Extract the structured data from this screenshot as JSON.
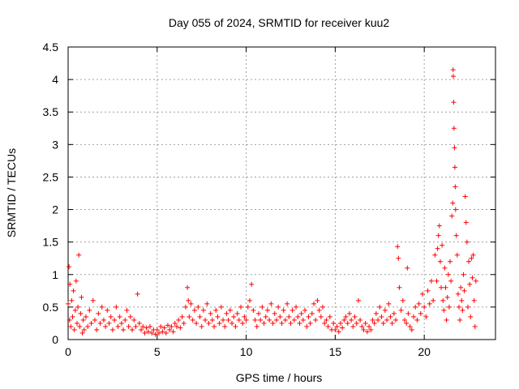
{
  "chart_data": {
    "type": "scatter",
    "title": "Day 055 of 2024, SRMTID for receiver kuu2",
    "xlabel": "GPS time / hours",
    "ylabel": "SRMTID / TECUs",
    "xlim": [
      0,
      24
    ],
    "ylim": [
      0,
      4.5
    ],
    "xticks": [
      {
        "value": 0,
        "label": "0"
      },
      {
        "value": 5,
        "label": "5"
      },
      {
        "value": 10,
        "label": "10"
      },
      {
        "value": 15,
        "label": "15"
      },
      {
        "value": 20,
        "label": "20"
      }
    ],
    "yticks": [
      {
        "value": 0,
        "label": "0"
      },
      {
        "value": 0.5,
        "label": "0.5"
      },
      {
        "value": 1,
        "label": "1"
      },
      {
        "value": 1.5,
        "label": "1.5"
      },
      {
        "value": 2,
        "label": "2"
      },
      {
        "value": 2.5,
        "label": "2.5"
      },
      {
        "value": 3,
        "label": "3"
      },
      {
        "value": 3.5,
        "label": "3.5"
      },
      {
        "value": 4,
        "label": "4"
      },
      {
        "value": 4.5,
        "label": "4.5"
      }
    ],
    "grid": true,
    "marker": "plus",
    "color": "#ff0000",
    "series": [
      {
        "name": "kuu2",
        "points": [
          [
            0.0,
            0.55
          ],
          [
            0.05,
            1.12
          ],
          [
            0.08,
            0.3
          ],
          [
            0.1,
            0.85
          ],
          [
            0.15,
            0.2
          ],
          [
            0.2,
            0.6
          ],
          [
            0.25,
            0.35
          ],
          [
            0.3,
            0.75
          ],
          [
            0.35,
            0.15
          ],
          [
            0.4,
            0.45
          ],
          [
            0.45,
            0.9
          ],
          [
            0.5,
            0.25
          ],
          [
            0.55,
            0.5
          ],
          [
            0.6,
            1.3
          ],
          [
            0.65,
            0.2
          ],
          [
            0.7,
            0.4
          ],
          [
            0.75,
            0.65
          ],
          [
            0.8,
            0.1
          ],
          [
            0.85,
            0.3
          ],
          [
            0.9,
            0.15
          ],
          [
            1.0,
            0.35
          ],
          [
            1.1,
            0.2
          ],
          [
            1.2,
            0.45
          ],
          [
            1.3,
            0.25
          ],
          [
            1.4,
            0.6
          ],
          [
            1.5,
            0.3
          ],
          [
            1.6,
            0.15
          ],
          [
            1.7,
            0.4
          ],
          [
            1.8,
            0.25
          ],
          [
            1.9,
            0.5
          ],
          [
            2.0,
            0.3
          ],
          [
            2.1,
            0.2
          ],
          [
            2.2,
            0.45
          ],
          [
            2.3,
            0.25
          ],
          [
            2.4,
            0.35
          ],
          [
            2.5,
            0.15
          ],
          [
            2.6,
            0.3
          ],
          [
            2.7,
            0.5
          ],
          [
            2.8,
            0.2
          ],
          [
            2.9,
            0.35
          ],
          [
            3.0,
            0.25
          ],
          [
            3.1,
            0.15
          ],
          [
            3.2,
            0.3
          ],
          [
            3.3,
            0.45
          ],
          [
            3.4,
            0.2
          ],
          [
            3.5,
            0.35
          ],
          [
            3.6,
            0.15
          ],
          [
            3.7,
            0.3
          ],
          [
            3.8,
            0.2
          ],
          [
            3.9,
            0.7
          ],
          [
            4.0,
            0.25
          ],
          [
            4.1,
            0.15
          ],
          [
            4.2,
            0.2
          ],
          [
            4.3,
            0.1
          ],
          [
            4.4,
            0.18
          ],
          [
            4.5,
            0.12
          ],
          [
            4.6,
            0.2
          ],
          [
            4.7,
            0.1
          ],
          [
            4.8,
            0.15
          ],
          [
            4.9,
            0.08
          ],
          [
            5.0,
            0.15
          ],
          [
            5.1,
            0.1
          ],
          [
            5.2,
            0.2
          ],
          [
            5.3,
            0.12
          ],
          [
            5.4,
            0.18
          ],
          [
            5.5,
            0.1
          ],
          [
            5.6,
            0.22
          ],
          [
            5.7,
            0.15
          ],
          [
            5.8,
            0.2
          ],
          [
            5.9,
            0.12
          ],
          [
            6.0,
            0.25
          ],
          [
            6.1,
            0.2
          ],
          [
            6.2,
            0.3
          ],
          [
            6.3,
            0.18
          ],
          [
            6.4,
            0.35
          ],
          [
            6.5,
            0.25
          ],
          [
            6.6,
            0.5
          ],
          [
            6.7,
            0.8
          ],
          [
            6.75,
            0.6
          ],
          [
            6.8,
            0.35
          ],
          [
            6.9,
            0.55
          ],
          [
            7.0,
            0.3
          ],
          [
            7.1,
            0.45
          ],
          [
            7.2,
            0.25
          ],
          [
            7.3,
            0.5
          ],
          [
            7.4,
            0.35
          ],
          [
            7.5,
            0.2
          ],
          [
            7.6,
            0.45
          ],
          [
            7.7,
            0.3
          ],
          [
            7.8,
            0.55
          ],
          [
            7.9,
            0.25
          ],
          [
            8.0,
            0.4
          ],
          [
            8.1,
            0.3
          ],
          [
            8.2,
            0.2
          ],
          [
            8.3,
            0.45
          ],
          [
            8.4,
            0.35
          ],
          [
            8.5,
            0.25
          ],
          [
            8.6,
            0.5
          ],
          [
            8.7,
            0.3
          ],
          [
            8.8,
            0.2
          ],
          [
            8.9,
            0.4
          ],
          [
            9.0,
            0.3
          ],
          [
            9.1,
            0.45
          ],
          [
            9.2,
            0.25
          ],
          [
            9.3,
            0.35
          ],
          [
            9.4,
            0.2
          ],
          [
            9.5,
            0.4
          ],
          [
            9.6,
            0.3
          ],
          [
            9.7,
            0.5
          ],
          [
            9.8,
            0.25
          ],
          [
            9.9,
            0.35
          ],
          [
            10.0,
            0.3
          ],
          [
            10.1,
            0.5
          ],
          [
            10.2,
            0.6
          ],
          [
            10.3,
            0.85
          ],
          [
            10.4,
            0.45
          ],
          [
            10.5,
            0.3
          ],
          [
            10.6,
            0.2
          ],
          [
            10.7,
            0.4
          ],
          [
            10.8,
            0.3
          ],
          [
            10.9,
            0.5
          ],
          [
            11.0,
            0.25
          ],
          [
            11.1,
            0.35
          ],
          [
            11.2,
            0.45
          ],
          [
            11.3,
            0.3
          ],
          [
            11.4,
            0.55
          ],
          [
            11.5,
            0.25
          ],
          [
            11.6,
            0.4
          ],
          [
            11.7,
            0.3
          ],
          [
            11.8,
            0.5
          ],
          [
            11.9,
            0.35
          ],
          [
            12.0,
            0.25
          ],
          [
            12.1,
            0.45
          ],
          [
            12.2,
            0.3
          ],
          [
            12.3,
            0.55
          ],
          [
            12.4,
            0.35
          ],
          [
            12.5,
            0.25
          ],
          [
            12.6,
            0.45
          ],
          [
            12.7,
            0.3
          ],
          [
            12.8,
            0.5
          ],
          [
            12.9,
            0.35
          ],
          [
            13.0,
            0.25
          ],
          [
            13.1,
            0.4
          ],
          [
            13.2,
            0.3
          ],
          [
            13.3,
            0.45
          ],
          [
            13.4,
            0.2
          ],
          [
            13.5,
            0.35
          ],
          [
            13.6,
            0.25
          ],
          [
            13.7,
            0.4
          ],
          [
            13.8,
            0.55
          ],
          [
            13.9,
            0.3
          ],
          [
            14.0,
            0.6
          ],
          [
            14.1,
            0.45
          ],
          [
            14.2,
            0.35
          ],
          [
            14.3,
            0.5
          ],
          [
            14.4,
            0.25
          ],
          [
            14.5,
            0.3
          ],
          [
            14.6,
            0.2
          ],
          [
            14.7,
            0.35
          ],
          [
            14.8,
            0.15
          ],
          [
            14.9,
            0.25
          ],
          [
            15.0,
            0.15
          ],
          [
            15.1,
            0.2
          ],
          [
            15.2,
            0.12
          ],
          [
            15.3,
            0.25
          ],
          [
            15.4,
            0.18
          ],
          [
            15.5,
            0.3
          ],
          [
            15.6,
            0.35
          ],
          [
            15.7,
            0.25
          ],
          [
            15.8,
            0.4
          ],
          [
            15.9,
            0.3
          ],
          [
            16.0,
            0.2
          ],
          [
            16.1,
            0.35
          ],
          [
            16.2,
            0.25
          ],
          [
            16.3,
            0.6
          ],
          [
            16.4,
            0.3
          ],
          [
            16.5,
            0.2
          ],
          [
            16.6,
            0.15
          ],
          [
            16.7,
            0.25
          ],
          [
            16.8,
            0.12
          ],
          [
            16.9,
            0.2
          ],
          [
            17.0,
            0.15
          ],
          [
            17.1,
            0.3
          ],
          [
            17.2,
            0.25
          ],
          [
            17.3,
            0.4
          ],
          [
            17.4,
            0.3
          ],
          [
            17.5,
            0.5
          ],
          [
            17.6,
            0.35
          ],
          [
            17.7,
            0.25
          ],
          [
            17.8,
            0.45
          ],
          [
            17.9,
            0.3
          ],
          [
            18.0,
            0.55
          ],
          [
            18.1,
            0.35
          ],
          [
            18.2,
            0.25
          ],
          [
            18.3,
            0.4
          ],
          [
            18.4,
            0.3
          ],
          [
            18.5,
            1.43
          ],
          [
            18.55,
            1.25
          ],
          [
            18.6,
            0.8
          ],
          [
            18.7,
            0.45
          ],
          [
            18.8,
            0.6
          ],
          [
            18.9,
            0.3
          ],
          [
            19.0,
            0.25
          ],
          [
            19.05,
            1.1
          ],
          [
            19.1,
            0.4
          ],
          [
            19.2,
            0.2
          ],
          [
            19.3,
            0.15
          ],
          [
            19.4,
            0.35
          ],
          [
            19.5,
            0.5
          ],
          [
            19.6,
            0.3
          ],
          [
            19.7,
            0.55
          ],
          [
            19.8,
            0.4
          ],
          [
            19.9,
            0.7
          ],
          [
            20.0,
            0.5
          ],
          [
            20.1,
            0.35
          ],
          [
            20.2,
            0.75
          ],
          [
            20.3,
            0.55
          ],
          [
            20.4,
            0.9
          ],
          [
            20.5,
            0.6
          ],
          [
            20.6,
            1.3
          ],
          [
            20.7,
            0.9
          ],
          [
            20.75,
            1.4
          ],
          [
            20.8,
            1.6
          ],
          [
            20.85,
            1.75
          ],
          [
            20.9,
            1.2
          ],
          [
            20.95,
            0.8
          ],
          [
            21.0,
            1.45
          ],
          [
            21.05,
            0.6
          ],
          [
            21.1,
            0.45
          ],
          [
            21.15,
            1.1
          ],
          [
            21.2,
            0.8
          ],
          [
            21.25,
            0.3
          ],
          [
            21.3,
            0.65
          ],
          [
            21.35,
            1.0
          ],
          [
            21.4,
            0.5
          ],
          [
            21.45,
            1.2
          ],
          [
            21.5,
            0.9
          ],
          [
            21.55,
            1.9
          ],
          [
            21.6,
            2.1
          ],
          [
            21.62,
            4.15
          ],
          [
            21.63,
            4.05
          ],
          [
            21.65,
            3.65
          ],
          [
            21.67,
            3.25
          ],
          [
            21.7,
            2.95
          ],
          [
            21.72,
            2.65
          ],
          [
            21.74,
            2.35
          ],
          [
            21.76,
            2.0
          ],
          [
            21.8,
            1.6
          ],
          [
            21.85,
            1.3
          ],
          [
            21.9,
            0.7
          ],
          [
            21.95,
            0.5
          ],
          [
            22.0,
            0.3
          ],
          [
            22.05,
            0.8
          ],
          [
            22.1,
            0.6
          ],
          [
            22.15,
            0.45
          ],
          [
            22.2,
            1.0
          ],
          [
            22.25,
            0.75
          ],
          [
            22.3,
            2.2
          ],
          [
            22.35,
            1.8
          ],
          [
            22.4,
            1.5
          ],
          [
            22.45,
            0.5
          ],
          [
            22.5,
            1.2
          ],
          [
            22.55,
            0.85
          ],
          [
            22.6,
            0.35
          ],
          [
            22.65,
            1.25
          ],
          [
            22.7,
            0.95
          ],
          [
            22.75,
            1.3
          ],
          [
            22.8,
            0.6
          ],
          [
            22.85,
            0.2
          ],
          [
            22.9,
            0.9
          ]
        ]
      }
    ]
  }
}
